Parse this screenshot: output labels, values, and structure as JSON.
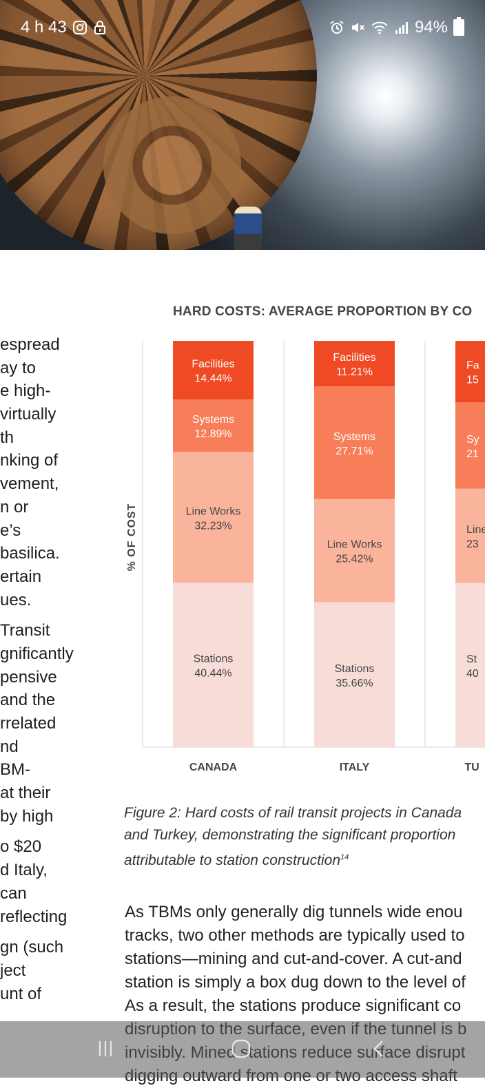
{
  "status_bar": {
    "time": "4 h 43",
    "battery": "94%",
    "icons_left": [
      "instagram-icon",
      "lock-icon"
    ],
    "icons_right": [
      "alarm-icon",
      "mute-icon",
      "wifi-icon",
      "signal-icon",
      "battery-icon"
    ]
  },
  "left_column_lines": [
    "espread",
    "ay to",
    "e high-",
    "virtually",
    "th",
    "nking of",
    "vement,",
    "n or",
    "e’s",
    "basilica.",
    "ertain",
    "ues.",
    "",
    "Transit",
    "gnificantly",
    "pensive",
    "and the",
    "rrelated",
    "nd",
    "BM-",
    "at their",
    "by high",
    "",
    "o $20",
    "d Italy,",
    "can",
    "reflecting",
    "",
    "gn (such",
    "ject",
    "unt of"
  ],
  "chart_data": {
    "type": "bar",
    "stacked": true,
    "title": "HARD COSTS: AVERAGE PROPORTION BY CO",
    "ylabel": "% OF COST",
    "categories": [
      "CANADA",
      "ITALY",
      "TU"
    ],
    "series": [
      {
        "name": "Stations",
        "values": [
          40.44,
          35.66,
          40
        ],
        "labels": [
          "40.44%",
          "35.66%",
          "40"
        ],
        "color": "#f7dcd8",
        "text_color": "#444444"
      },
      {
        "name": "Line Works",
        "values": [
          32.23,
          25.42,
          23
        ],
        "labels": [
          "32.23%",
          "25.42%",
          "23"
        ],
        "color": "#fbb49c",
        "text_color": "#444444"
      },
      {
        "name": "Systems",
        "values": [
          12.89,
          27.71,
          21
        ],
        "labels": [
          "12.89%",
          "27.71%",
          "21"
        ],
        "color": "#f77e59",
        "text_color": "#ffffff"
      },
      {
        "name": "Facilities",
        "values": [
          14.44,
          11.21,
          15
        ],
        "labels": [
          "14.44%",
          "11.21%",
          "15"
        ],
        "color": "#ef4a23",
        "text_color": "#ffffff"
      }
    ],
    "cropped_labels": {
      "Stations": "St",
      "Line Works": "Line",
      "Systems": "Sy",
      "Facilities": "Fa"
    },
    "ylim": [
      0,
      100
    ]
  },
  "caption": {
    "lines": [
      "Figure 2: Hard costs of rail transit projects in Canada",
      "and Turkey, demonstrating the significant proportion",
      "attributable to station construction"
    ],
    "footnote": "14"
  },
  "body_text_lines": [
    "As TBMs only generally dig tunnels wide enou",
    "tracks, two other methods are typically used to",
    "stations—mining and cut-and-cover. A cut-and",
    "station is simply a box dug down to the level of",
    "As a result, the stations produce significant co",
    "disruption to the surface, even if the tunnel is b",
    "invisibly. Mined stations reduce surface disrupt",
    "digging outward from one or two access shaft"
  ],
  "navbar": {
    "buttons": [
      "recents-button",
      "home-button",
      "back-button"
    ]
  }
}
